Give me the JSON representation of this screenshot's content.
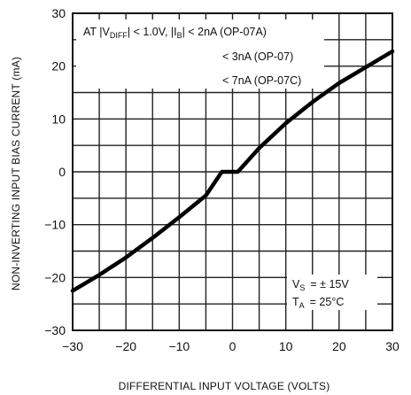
{
  "chart_data": {
    "type": "line",
    "xlabel": "DIFFERENTIAL INPUT VOLTAGE (VOLTS)",
    "ylabel": "NON-INVERTING INPUT BIAS CURRENT (mA)",
    "xlim": [
      -30,
      30
    ],
    "ylim": [
      -30,
      30
    ],
    "x_ticks": [
      -30,
      -20,
      -10,
      0,
      10,
      20,
      30
    ],
    "y_ticks": [
      -30,
      -20,
      -10,
      0,
      10,
      20,
      30
    ],
    "x_tick_labels": [
      "−30",
      "−20",
      "−10",
      "0",
      "10",
      "20",
      "30"
    ],
    "y_tick_labels": [
      "−30",
      "−20",
      "−10",
      "0",
      "10",
      "20",
      "30"
    ],
    "grid": true,
    "series": [
      {
        "x": [
          -30,
          -25,
          -20,
          -15,
          -10,
          -5,
          -2,
          1,
          5,
          10,
          15,
          20,
          25,
          30
        ],
        "y": [
          -22.5,
          -19.5,
          -16.2,
          -12.5,
          -8.6,
          -4.5,
          0,
          0,
          4.5,
          9.2,
          13.2,
          16.8,
          19.8,
          22.8
        ]
      }
    ],
    "annotations": {
      "condition_prefix": "AT |V",
      "condition_sub": "DIFF",
      "condition_mid": "| < 1.0V, |I",
      "condition_sub2": "B",
      "condition_suffix": "| < 2nA (OP-07A)",
      "line2": "< 3nA (OP-07)",
      "line3": "< 7nA (OP-07C)",
      "vs_label": "V",
      "vs_sub": "S",
      "vs_value": "= ± 15V",
      "ta_label": "T",
      "ta_sub": "A",
      "ta_value": "= 25°C"
    }
  }
}
